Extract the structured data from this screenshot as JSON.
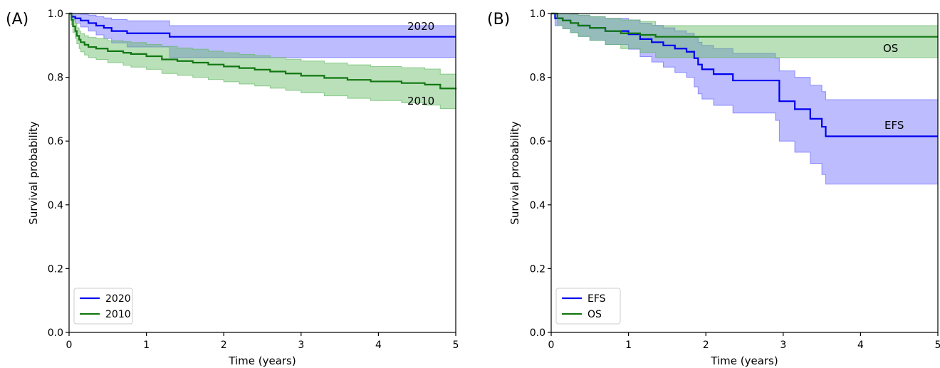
{
  "chart_data": [
    {
      "panel": "(A)",
      "type": "line",
      "step": true,
      "xlabel": "Time (years)",
      "ylabel": "Survival probability",
      "xlim": [
        0,
        5
      ],
      "ylim": [
        0,
        1.0
      ],
      "xticks": [
        0,
        1,
        2,
        3,
        4,
        5
      ],
      "yticks": [
        0.0,
        0.2,
        0.4,
        0.6,
        0.8,
        1.0
      ],
      "grid": false,
      "legend_position": "lower-left",
      "series": [
        {
          "name": "2020",
          "color": "#0000ee",
          "band_color": "#6b6bff",
          "label": "2020",
          "x": [
            0,
            0.03,
            0.08,
            0.15,
            0.25,
            0.35,
            0.45,
            0.55,
            0.75,
            1.3,
            5
          ],
          "y": [
            1.0,
            0.99,
            0.985,
            0.978,
            0.97,
            0.962,
            0.955,
            0.945,
            0.938,
            0.927,
            0.927
          ],
          "lower": [
            1.0,
            0.98,
            0.97,
            0.958,
            0.945,
            0.933,
            0.922,
            0.908,
            0.895,
            0.862,
            0.862
          ],
          "upper": [
            1.0,
            1.0,
            1.0,
            0.998,
            0.995,
            0.99,
            0.986,
            0.981,
            0.977,
            0.962,
            0.962
          ]
        },
        {
          "name": "2010",
          "color": "#117711",
          "band_color": "#66bb66",
          "label": "2010",
          "x": [
            0,
            0.03,
            0.05,
            0.08,
            0.1,
            0.13,
            0.15,
            0.2,
            0.25,
            0.35,
            0.5,
            0.7,
            0.8,
            1.0,
            1.2,
            1.4,
            1.6,
            1.8,
            2.0,
            2.2,
            2.4,
            2.6,
            2.8,
            3.0,
            3.3,
            3.6,
            3.9,
            4.3,
            4.6,
            4.8,
            5
          ],
          "y": [
            1.0,
            0.98,
            0.96,
            0.945,
            0.93,
            0.918,
            0.91,
            0.902,
            0.895,
            0.89,
            0.882,
            0.877,
            0.873,
            0.866,
            0.856,
            0.851,
            0.846,
            0.84,
            0.834,
            0.829,
            0.824,
            0.818,
            0.812,
            0.805,
            0.798,
            0.792,
            0.787,
            0.782,
            0.777,
            0.765,
            0.762
          ],
          "lower": [
            1.0,
            0.965,
            0.94,
            0.922,
            0.905,
            0.89,
            0.88,
            0.87,
            0.862,
            0.856,
            0.846,
            0.838,
            0.832,
            0.825,
            0.812,
            0.806,
            0.8,
            0.793,
            0.786,
            0.779,
            0.773,
            0.766,
            0.759,
            0.751,
            0.742,
            0.734,
            0.727,
            0.72,
            0.713,
            0.702,
            0.702
          ],
          "upper": [
            1.0,
            0.995,
            0.982,
            0.97,
            0.955,
            0.945,
            0.937,
            0.93,
            0.925,
            0.922,
            0.915,
            0.912,
            0.909,
            0.903,
            0.897,
            0.892,
            0.888,
            0.882,
            0.877,
            0.872,
            0.868,
            0.862,
            0.857,
            0.851,
            0.845,
            0.839,
            0.834,
            0.83,
            0.826,
            0.81,
            0.81
          ]
        }
      ],
      "legend": [
        "2020",
        "2010"
      ]
    },
    {
      "panel": "(B)",
      "type": "line",
      "step": true,
      "xlabel": "Time (years)",
      "ylabel": "Survival probability",
      "xlim": [
        0,
        5
      ],
      "ylim": [
        0,
        1.0
      ],
      "xticks": [
        0,
        1,
        2,
        3,
        4,
        5
      ],
      "yticks": [
        0.0,
        0.2,
        0.4,
        0.6,
        0.8,
        1.0
      ],
      "grid": false,
      "legend_position": "lower-left",
      "series": [
        {
          "name": "EFS",
          "color": "#0000ee",
          "band_color": "#6b6bff",
          "label": "EFS",
          "x": [
            0,
            0.05,
            0.15,
            0.25,
            0.35,
            0.5,
            0.7,
            1.0,
            1.15,
            1.3,
            1.45,
            1.6,
            1.75,
            1.85,
            1.9,
            1.95,
            2.1,
            2.35,
            2.6,
            2.9,
            2.95,
            3.15,
            3.35,
            3.5,
            3.55,
            3.7,
            5
          ],
          "y": [
            1.0,
            0.985,
            0.978,
            0.97,
            0.962,
            0.955,
            0.945,
            0.935,
            0.92,
            0.91,
            0.9,
            0.89,
            0.88,
            0.86,
            0.84,
            0.825,
            0.81,
            0.79,
            0.79,
            0.79,
            0.725,
            0.7,
            0.67,
            0.645,
            0.615,
            0.615,
            0.615
          ],
          "lower": [
            1.0,
            0.962,
            0.952,
            0.94,
            0.928,
            0.916,
            0.903,
            0.888,
            0.865,
            0.848,
            0.832,
            0.815,
            0.8,
            0.77,
            0.748,
            0.732,
            0.712,
            0.688,
            0.688,
            0.665,
            0.6,
            0.565,
            0.53,
            0.495,
            0.465,
            0.465,
            0.465
          ],
          "upper": [
            1.0,
            1.0,
            1.0,
            0.998,
            0.995,
            0.99,
            0.985,
            0.98,
            0.97,
            0.963,
            0.955,
            0.946,
            0.938,
            0.925,
            0.91,
            0.9,
            0.89,
            0.875,
            0.875,
            0.86,
            0.82,
            0.8,
            0.775,
            0.755,
            0.73,
            0.73,
            0.73
          ]
        },
        {
          "name": "OS",
          "color": "#117711",
          "band_color": "#66bb66",
          "label": "OS",
          "x": [
            0,
            0.08,
            0.15,
            0.25,
            0.35,
            0.5,
            0.7,
            0.9,
            1.15,
            1.35,
            5
          ],
          "y": [
            1.0,
            0.985,
            0.978,
            0.97,
            0.962,
            0.955,
            0.945,
            0.938,
            0.933,
            0.927,
            0.927
          ],
          "lower": [
            1.0,
            0.962,
            0.952,
            0.94,
            0.928,
            0.916,
            0.903,
            0.89,
            0.878,
            0.862,
            0.862
          ],
          "upper": [
            1.0,
            1.0,
            1.0,
            0.998,
            0.995,
            0.99,
            0.985,
            0.98,
            0.975,
            0.962,
            0.962
          ]
        }
      ],
      "legend": [
        "EFS",
        "OS"
      ]
    }
  ]
}
